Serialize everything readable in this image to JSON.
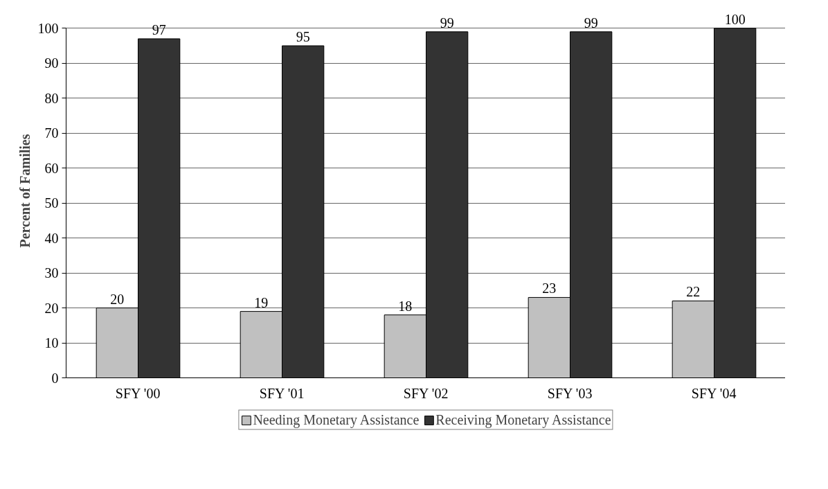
{
  "chart_data": {
    "type": "bar",
    "ylabel": "Percent of Families",
    "categories": [
      "SFY '00",
      "SFY '01",
      "SFY '02",
      "SFY '03",
      "SFY '04"
    ],
    "series": [
      {
        "name": "Needing Monetary Assistance",
        "color": "#c0c0c0",
        "values": [
          20,
          19,
          18,
          23,
          22
        ]
      },
      {
        "name": "Receiving Monetary Assistance",
        "color": "#333333",
        "values": [
          97,
          95,
          99,
          99,
          100
        ]
      }
    ],
    "ylim": [
      0,
      100
    ],
    "yticks": [
      0,
      10,
      20,
      30,
      40,
      50,
      60,
      70,
      80,
      90,
      100
    ],
    "grid": "y",
    "legend": "bottom",
    "data_labels": true
  }
}
